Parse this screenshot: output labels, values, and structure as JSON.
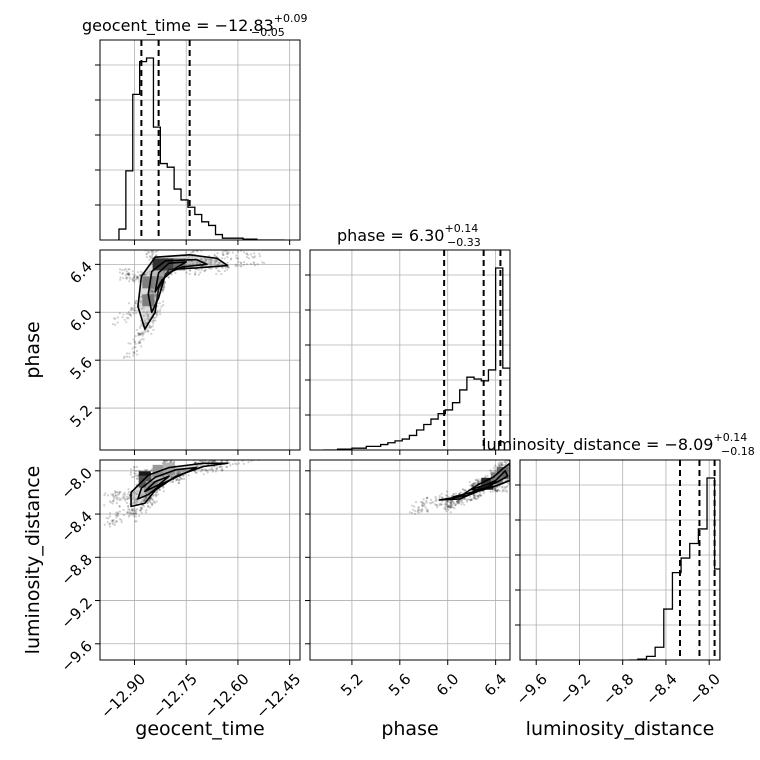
{
  "chart_data": {
    "type": "corner",
    "parameters": [
      "geocent_time",
      "phase",
      "luminosity_distance"
    ],
    "axis_labels": {
      "geocent_time": "geocent_time",
      "phase": "phase",
      "luminosity_distance": "luminosity_distance"
    },
    "titles": [
      {
        "param": "geocent_time",
        "prefix": "geocent_time = ",
        "median": "−12.83",
        "plus": "+0.09",
        "minus": "−0.05"
      },
      {
        "param": "phase",
        "prefix": "phase = ",
        "median": "6.30",
        "plus": "+0.14",
        "minus": "−0.33"
      },
      {
        "param": "luminosity_distance",
        "prefix": "luminosity_distance = ",
        "median": "−8.09",
        "plus": "+0.14",
        "minus": "−0.18"
      }
    ],
    "ranges": {
      "geocent_time": [
        -13.0,
        -12.42
      ],
      "phase": [
        4.85,
        6.52
      ],
      "luminosity_distance": [
        -9.75,
        -7.9
      ]
    },
    "ticks": {
      "geocent_time": {
        "values": [
          -12.9,
          -12.75,
          -12.6,
          -12.45
        ],
        "labels": [
          "−12.90",
          "−12.75",
          "−12.60",
          "−12.45"
        ]
      },
      "phase": {
        "values": [
          5.2,
          5.6,
          6.0,
          6.4
        ],
        "labels": [
          "5.2",
          "5.6",
          "6.0",
          "6.4"
        ]
      },
      "luminosity_distance": {
        "values": [
          -9.6,
          -9.2,
          -8.8,
          -8.4,
          -8.0
        ],
        "labels": [
          "−9.6",
          "−9.2",
          "−8.8",
          "−8.4",
          "−8.0"
        ]
      }
    },
    "quantiles": {
      "geocent_time": [
        -12.88,
        -12.83,
        -12.74
      ],
      "phase": [
        5.97,
        6.3,
        6.44
      ],
      "luminosity_distance": [
        -8.27,
        -8.09,
        -7.95
      ]
    },
    "histograms": {
      "geocent_time": {
        "edges": [
          -12.945,
          -12.925,
          -12.905,
          -12.885,
          -12.865,
          -12.845,
          -12.825,
          -12.805,
          -12.785,
          -12.765,
          -12.745,
          -12.725,
          -12.705,
          -12.685,
          -12.665,
          -12.645,
          -12.625,
          -12.605,
          -12.585,
          -12.565,
          -12.545,
          -12.525,
          -12.505,
          -12.485,
          -12.465
        ],
        "counts": [
          0.06,
          0.38,
          0.8,
          0.98,
          1.0,
          0.62,
          0.42,
          0.4,
          0.28,
          0.22,
          0.18,
          0.14,
          0.1,
          0.08,
          0.03,
          0.01,
          0.01,
          0.01,
          0.005,
          0.005,
          0.0,
          0.0,
          0.0,
          0.0
        ]
      },
      "phase": {
        "edges": [
          4.96,
          5.02,
          5.08,
          5.14,
          5.2,
          5.26,
          5.32,
          5.38,
          5.44,
          5.5,
          5.56,
          5.62,
          5.68,
          5.74,
          5.8,
          5.86,
          5.92,
          5.98,
          6.04,
          6.1,
          6.16,
          6.22,
          6.28,
          6.34,
          6.4,
          6.46,
          6.52
        ],
        "counts": [
          0.0,
          0.0,
          0.005,
          0.005,
          0.01,
          0.01,
          0.02,
          0.02,
          0.03,
          0.04,
          0.05,
          0.06,
          0.08,
          0.11,
          0.14,
          0.17,
          0.2,
          0.22,
          0.26,
          0.33,
          0.4,
          0.39,
          0.38,
          0.44,
          1.0,
          0.45
        ]
      },
      "luminosity_distance": {
        "edges": [
          -8.74,
          -8.66,
          -8.58,
          -8.5,
          -8.42,
          -8.34,
          -8.26,
          -8.18,
          -8.1,
          -8.02,
          -7.95,
          -7.9
        ],
        "counts": [
          0.0,
          0.005,
          0.02,
          0.07,
          0.28,
          0.48,
          0.56,
          0.64,
          0.72,
          1.0,
          0.5
        ]
      }
    },
    "contours": {
      "phase_vs_geocent_time": [
        [
          [
            -12.87,
            5.86
          ],
          [
            -12.89,
            6.05
          ],
          [
            -12.88,
            6.3
          ],
          [
            -12.84,
            6.46
          ],
          [
            -12.74,
            6.48
          ],
          [
            -12.66,
            6.45
          ],
          [
            -12.63,
            6.39
          ],
          [
            -12.72,
            6.37
          ],
          [
            -12.8,
            6.36
          ],
          [
            -12.83,
            6.2
          ],
          [
            -12.84,
            6.0
          ]
        ],
        [
          [
            -12.85,
            6.0
          ],
          [
            -12.86,
            6.15
          ],
          [
            -12.85,
            6.34
          ],
          [
            -12.81,
            6.43
          ],
          [
            -12.72,
            6.44
          ],
          [
            -12.69,
            6.4
          ],
          [
            -12.76,
            6.38
          ],
          [
            -12.81,
            6.32
          ],
          [
            -12.83,
            6.12
          ]
        ],
        [
          [
            -12.84,
            6.17
          ],
          [
            -12.83,
            6.33
          ],
          [
            -12.8,
            6.41
          ],
          [
            -12.75,
            6.42
          ],
          [
            -12.78,
            6.37
          ],
          [
            -12.82,
            6.27
          ]
        ]
      ],
      "luminosity_distance_vs_geocent_time": [
        [
          [
            -12.91,
            -8.33
          ],
          [
            -12.91,
            -8.2
          ],
          [
            -12.86,
            -8.04
          ],
          [
            -12.8,
            -7.97
          ],
          [
            -12.7,
            -7.93
          ],
          [
            -12.63,
            -7.93
          ],
          [
            -12.7,
            -7.96
          ],
          [
            -12.78,
            -8.05
          ],
          [
            -12.84,
            -8.18
          ],
          [
            -12.87,
            -8.3
          ]
        ],
        [
          [
            -12.89,
            -8.26
          ],
          [
            -12.88,
            -8.16
          ],
          [
            -12.84,
            -8.06
          ],
          [
            -12.78,
            -7.99
          ],
          [
            -12.72,
            -7.97
          ],
          [
            -12.76,
            -8.03
          ],
          [
            -12.82,
            -8.12
          ],
          [
            -12.86,
            -8.22
          ]
        ],
        [
          [
            -12.87,
            -8.19
          ],
          [
            -12.84,
            -8.1
          ],
          [
            -12.8,
            -8.05
          ],
          [
            -12.83,
            -8.13
          ]
        ]
      ],
      "luminosity_distance_vs_phase": [
        [
          [
            5.93,
            -8.27
          ],
          [
            6.1,
            -8.24
          ],
          [
            6.25,
            -8.13
          ],
          [
            6.38,
            -8.06
          ],
          [
            6.46,
            -7.98
          ],
          [
            6.52,
            -7.93
          ],
          [
            6.52,
            -8.09
          ],
          [
            6.4,
            -8.14
          ],
          [
            6.25,
            -8.19
          ],
          [
            6.1,
            -8.26
          ]
        ],
        [
          [
            6.05,
            -8.24
          ],
          [
            6.2,
            -8.2
          ],
          [
            6.3,
            -8.14
          ],
          [
            6.4,
            -8.09
          ],
          [
            6.48,
            -8.0
          ],
          [
            6.5,
            -8.05
          ],
          [
            6.42,
            -8.1
          ],
          [
            6.28,
            -8.17
          ],
          [
            6.16,
            -8.23
          ]
        ],
        [
          [
            6.2,
            -8.17
          ],
          [
            6.32,
            -8.13
          ],
          [
            6.4,
            -8.1
          ],
          [
            6.34,
            -8.15
          ],
          [
            6.24,
            -8.18
          ]
        ]
      ]
    },
    "density_blocks": {
      "phase_vs_geocent_time": [
        [
          -12.83,
          6.4,
          0.9
        ],
        [
          -12.8,
          6.4,
          0.9
        ],
        [
          -12.86,
          6.25,
          0.5
        ],
        [
          -12.86,
          6.1,
          0.5
        ],
        [
          -12.77,
          6.4,
          0.5
        ],
        [
          -12.83,
          6.25,
          0.4
        ]
      ],
      "luminosity_distance_vs_geocent_time": [
        [
          -12.87,
          -8.06,
          0.9
        ],
        [
          -12.87,
          -8.1,
          0.7
        ],
        [
          -12.83,
          -8.0,
          0.4
        ],
        [
          -12.8,
          -7.98,
          0.3
        ],
        [
          -12.85,
          -8.15,
          0.3
        ]
      ],
      "luminosity_distance_vs_phase": [
        [
          6.33,
          -8.12,
          0.85
        ],
        [
          6.46,
          -8.02,
          0.6
        ],
        [
          6.41,
          -8.07,
          0.5
        ]
      ]
    }
  }
}
